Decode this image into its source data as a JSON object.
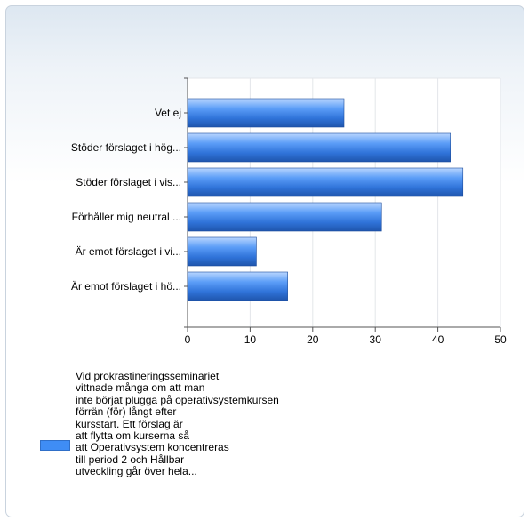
{
  "chart_data": {
    "type": "bar",
    "orientation": "horizontal",
    "categories": [
      "Vet ej",
      "Stöder förslaget i hög...",
      "Stöder förslaget i vis...",
      "Förhåller mig neutral ...",
      "Är emot förslaget i vi...",
      "Är emot förslaget i hö..."
    ],
    "series": [
      {
        "name": "Vid prokrastineringsseminariet\nvittnade många om att man\ninte börjat plugga på operativsystemkursen\nförrän (för) långt efter\nkursstart. Ett förslag är\natt flytta om kurserna så\natt Operativsystem koncentreras\ntill period 2 och Hållbar\nutveckling går över hela...",
        "values": [
          25,
          42,
          44,
          31,
          11,
          16
        ],
        "color": "#3f8df5"
      }
    ],
    "xlim": [
      0,
      50
    ],
    "xticks": [
      0,
      10,
      20,
      30,
      40,
      50
    ],
    "grid": true,
    "legend_position": "bottom"
  }
}
